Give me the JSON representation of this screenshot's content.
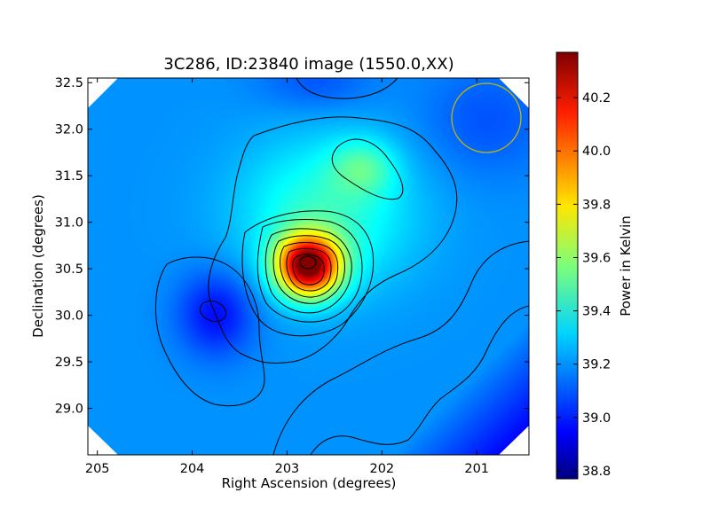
{
  "chart_data": {
    "type": "heatmap",
    "title": "3C286, ID:23840 image (1550.0,XX)",
    "xlabel": "Right Ascension (degrees)",
    "ylabel": "Declination (degrees)",
    "xlim": [
      205.1,
      200.45
    ],
    "ylim": [
      28.5,
      32.55
    ],
    "x_ticks": [
      "205",
      "204",
      "203",
      "202",
      "201"
    ],
    "x_tick_values": [
      205,
      204,
      203,
      202,
      201
    ],
    "y_ticks": [
      "29.0",
      "29.5",
      "30.0",
      "30.5",
      "31.0",
      "31.5",
      "32.0",
      "32.5"
    ],
    "y_tick_values": [
      29.0,
      29.5,
      30.0,
      30.5,
      31.0,
      31.5,
      32.0,
      32.5
    ],
    "colormap": "jet",
    "grid": false,
    "colorbar": {
      "label": "Power in Kelvin",
      "range": [
        38.77,
        40.37
      ],
      "ticks": [
        "38.8",
        "39.0",
        "39.2",
        "39.4",
        "39.6",
        "39.8",
        "40.0",
        "40.2"
      ],
      "tick_values": [
        38.8,
        39.0,
        39.2,
        39.4,
        39.6,
        39.8,
        40.0,
        40.2
      ]
    },
    "peak": {
      "ra": 202.78,
      "dec": 30.54,
      "value": 40.35
    },
    "secondary_max": {
      "ra": 202.2,
      "dec": 31.6,
      "value": 39.55
    },
    "local_min": {
      "ra": 203.75,
      "dec": 30.02,
      "value": 39.0
    },
    "beam": {
      "ra": 200.9,
      "dec": 32.07,
      "color": "#c8b400"
    }
  }
}
